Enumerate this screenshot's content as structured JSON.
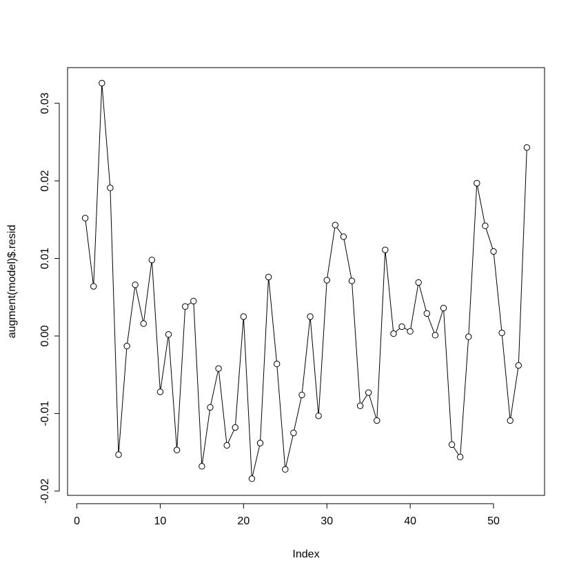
{
  "chart_data": {
    "type": "line",
    "xlabel": "Index",
    "ylabel": "augment(model)$.resid",
    "x": [
      1,
      2,
      3,
      4,
      5,
      6,
      7,
      8,
      9,
      10,
      11,
      12,
      13,
      14,
      15,
      16,
      17,
      18,
      19,
      20,
      21,
      22,
      23,
      24,
      25,
      26,
      27,
      28,
      29,
      30,
      31,
      32,
      33,
      34,
      35,
      36,
      37,
      38,
      39,
      40,
      41,
      42,
      43,
      44,
      45,
      46,
      47,
      48,
      49,
      50,
      51,
      52,
      53,
      54
    ],
    "values": [
      0.0152,
      0.0064,
      0.0326,
      0.0191,
      -0.0153,
      -0.0013,
      0.0066,
      0.0016,
      0.0098,
      -0.0072,
      0.0002,
      -0.0147,
      0.0038,
      0.0045,
      -0.0168,
      -0.0092,
      -0.0042,
      -0.0141,
      -0.0118,
      0.0025,
      -0.0184,
      -0.0138,
      0.0076,
      -0.0036,
      -0.0172,
      -0.0125,
      -0.0076,
      0.0025,
      -0.0103,
      0.0072,
      0.0143,
      0.0128,
      0.0071,
      -0.009,
      -0.0073,
      -0.0109,
      0.0111,
      0.0003,
      0.0012,
      0.0006,
      0.0069,
      0.0029,
      0.0001,
      0.0036,
      -0.014,
      -0.0156,
      -0.0001,
      0.0197,
      0.0142,
      0.0109,
      0.0004,
      -0.0109,
      -0.0038,
      0.0243
    ],
    "color": "#000000",
    "xlim": [
      -1.12,
      56.12
    ],
    "xticks": [
      0,
      10,
      20,
      30,
      40,
      50
    ],
    "ylim": [
      -0.02055,
      0.0346
    ],
    "yticks": [
      -0.02,
      -0.01,
      {
        "value": 0,
        "label": "0.00"
      },
      0.01,
      0.02,
      0.03
    ]
  }
}
